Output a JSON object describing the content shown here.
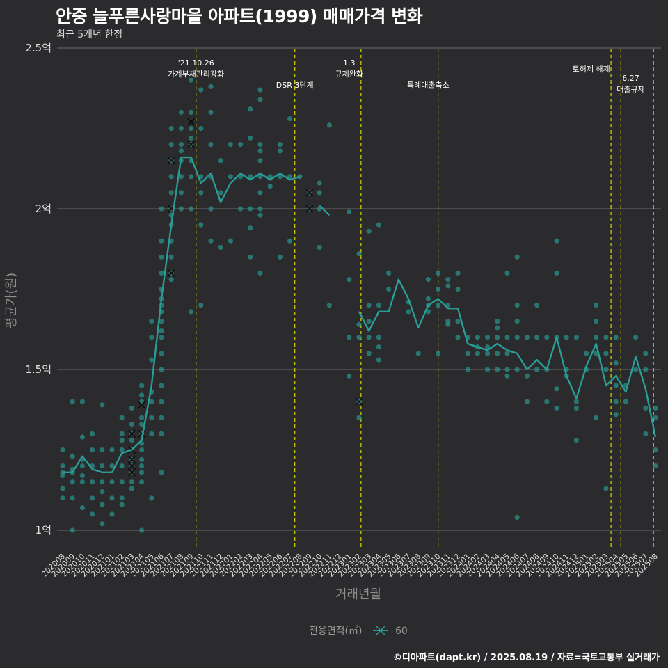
{
  "header": {
    "title": "안중 늘푸른사랑마을 아파트(1999) 매매가격 변화",
    "subtitle": "최근 5개년 한정"
  },
  "footer": {
    "credit": "©디아파트(dapt.kr) / 2025.08.19 / 자료=국토교통부 실거래가"
  },
  "colors": {
    "background": "#2b2b2d",
    "series": "#2a9d96",
    "points": "#2a8f88",
    "grid": "#6e6e6e",
    "event_line": "#d8d800"
  },
  "chart_data": {
    "type": "line",
    "xlabel": "거래년월",
    "ylabel": "평균가(원)",
    "ylim": [
      0.93,
      2.5
    ],
    "yticks": [
      {
        "value": 1,
        "label": "1억"
      },
      {
        "value": 1.5,
        "label": "1.5억"
      },
      {
        "value": 2,
        "label": "2억"
      },
      {
        "value": 2.5,
        "label": "2.5억"
      }
    ],
    "grid": "horizontal",
    "legend": {
      "title": "전용면적(㎡)",
      "placement": "bottom",
      "entries": [
        {
          "label": "60"
        }
      ]
    },
    "x": [
      "202008",
      "202009",
      "202010",
      "202011",
      "202012",
      "202101",
      "202102",
      "202103",
      "202104",
      "202105",
      "202106",
      "202107",
      "202108",
      "202109",
      "202110",
      "202111",
      "202112",
      "202201",
      "202202",
      "202203",
      "202204",
      "202205",
      "202206",
      "202207",
      "202208",
      "202209",
      "202210",
      "202211",
      "202212",
      "202301",
      "202302",
      "202303",
      "202304",
      "202305",
      "202306",
      "202307",
      "202308",
      "202309",
      "202310",
      "202311",
      "202312",
      "202401",
      "202402",
      "202403",
      "202404",
      "202405",
      "202406",
      "202407",
      "202408",
      "202409",
      "202410",
      "202411",
      "202412",
      "202501",
      "202502",
      "202503",
      "202504",
      "202505",
      "202506",
      "202507",
      "202508"
    ],
    "series": [
      {
        "name": "60",
        "values": [
          1.18,
          1.18,
          1.23,
          1.19,
          1.18,
          1.18,
          1.24,
          1.25,
          1.28,
          1.45,
          1.72,
          1.95,
          2.16,
          2.16,
          2.08,
          2.11,
          2.02,
          2.08,
          2.11,
          2.09,
          2.11,
          2.09,
          2.11,
          2.09,
          2.1,
          null,
          2.01,
          1.98,
          null,
          null,
          1.68,
          1.62,
          1.68,
          1.68,
          1.78,
          1.72,
          1.63,
          1.7,
          1.72,
          1.69,
          1.69,
          1.58,
          1.57,
          1.56,
          1.58,
          1.56,
          1.55,
          1.5,
          1.53,
          1.5,
          1.6,
          1.48,
          1.41,
          1.51,
          1.58,
          1.45,
          1.48,
          1.43,
          1.54,
          1.44,
          1.29
        ]
      }
    ],
    "scatter": [
      [
        0,
        1.25
      ],
      [
        0,
        1.2
      ],
      [
        0,
        1.17
      ],
      [
        0,
        1.13
      ],
      [
        0,
        1.1
      ],
      [
        0,
        1.18
      ],
      [
        1,
        1.4
      ],
      [
        1,
        1.23
      ],
      [
        1,
        1.19
      ],
      [
        1,
        1.15
      ],
      [
        1,
        1.1
      ],
      [
        1,
        1.0
      ],
      [
        1,
        1.18
      ],
      [
        2,
        1.4
      ],
      [
        2,
        1.29
      ],
      [
        2,
        1.2
      ],
      [
        2,
        1.17
      ],
      [
        2,
        1.15
      ],
      [
        2,
        1.07
      ],
      [
        2,
        1.22
      ],
      [
        3,
        1.3
      ],
      [
        3,
        1.25
      ],
      [
        3,
        1.2
      ],
      [
        3,
        1.15
      ],
      [
        3,
        1.1
      ],
      [
        3,
        1.05
      ],
      [
        4,
        1.39
      ],
      [
        4,
        1.25
      ],
      [
        4,
        1.2
      ],
      [
        4,
        1.15
      ],
      [
        4,
        1.12
      ],
      [
        4,
        1.08
      ],
      [
        4,
        1.02
      ],
      [
        5,
        1.25
      ],
      [
        5,
        1.2
      ],
      [
        5,
        1.15
      ],
      [
        5,
        1.1
      ],
      [
        5,
        1.05
      ],
      [
        6,
        1.35
      ],
      [
        6,
        1.3
      ],
      [
        6,
        1.25
      ],
      [
        6,
        1.2
      ],
      [
        6,
        1.15
      ],
      [
        6,
        1.1
      ],
      [
        6,
        1.08
      ],
      [
        6,
        1.28
      ],
      [
        7,
        1.38
      ],
      [
        7,
        1.33
      ],
      [
        7,
        1.3
      ],
      [
        7,
        1.25
      ],
      [
        7,
        1.22
      ],
      [
        7,
        1.2
      ],
      [
        7,
        1.18
      ],
      [
        7,
        1.15
      ],
      [
        7,
        1.13
      ],
      [
        7,
        1.28
      ],
      [
        8,
        1.45
      ],
      [
        8,
        1.4
      ],
      [
        8,
        1.35
      ],
      [
        8,
        1.3
      ],
      [
        8,
        1.27
      ],
      [
        8,
        1.25
      ],
      [
        8,
        1.22
      ],
      [
        8,
        1.2
      ],
      [
        8,
        1.18
      ],
      [
        8,
        1.15
      ],
      [
        8,
        1.0
      ],
      [
        8,
        1.33
      ],
      [
        8,
        1.42
      ],
      [
        9,
        1.65
      ],
      [
        9,
        1.6
      ],
      [
        9,
        1.53
      ],
      [
        9,
        1.43
      ],
      [
        9,
        1.4
      ],
      [
        9,
        1.35
      ],
      [
        9,
        1.3
      ],
      [
        9,
        1.1
      ],
      [
        10,
        2.0
      ],
      [
        10,
        1.9
      ],
      [
        10,
        1.85
      ],
      [
        10,
        1.8
      ],
      [
        10,
        1.75
      ],
      [
        10,
        1.7
      ],
      [
        10,
        1.65
      ],
      [
        10,
        1.6
      ],
      [
        10,
        1.55
      ],
      [
        10,
        1.5
      ],
      [
        10,
        1.45
      ],
      [
        10,
        1.4
      ],
      [
        10,
        1.35
      ],
      [
        10,
        1.3
      ],
      [
        10,
        1.18
      ],
      [
        10,
        1.68
      ],
      [
        10,
        1.72
      ],
      [
        10,
        1.62
      ],
      [
        11,
        2.2
      ],
      [
        11,
        2.15
      ],
      [
        11,
        2.1
      ],
      [
        11,
        2.05
      ],
      [
        11,
        2.0
      ],
      [
        11,
        1.95
      ],
      [
        11,
        1.9
      ],
      [
        11,
        1.85
      ],
      [
        11,
        1.8
      ],
      [
        11,
        1.78
      ],
      [
        11,
        2.25
      ],
      [
        11,
        1.98
      ],
      [
        12,
        2.3
      ],
      [
        12,
        2.25
      ],
      [
        12,
        2.2
      ],
      [
        12,
        2.15
      ],
      [
        12,
        2.1
      ],
      [
        12,
        2.05
      ],
      [
        12,
        2.0
      ],
      [
        12,
        2.18
      ],
      [
        13,
        2.4
      ],
      [
        13,
        2.3
      ],
      [
        13,
        2.25
      ],
      [
        13,
        2.2
      ],
      [
        13,
        2.15
      ],
      [
        13,
        2.1
      ],
      [
        13,
        2.0
      ],
      [
        13,
        1.68
      ],
      [
        13,
        2.22
      ],
      [
        14,
        2.37
      ],
      [
        14,
        2.25
      ],
      [
        14,
        2.1
      ],
      [
        14,
        1.95
      ],
      [
        14,
        1.7
      ],
      [
        14,
        2.05
      ],
      [
        15,
        2.38
      ],
      [
        15,
        2.3
      ],
      [
        15,
        2.2
      ],
      [
        15,
        2.1
      ],
      [
        15,
        2.0
      ],
      [
        15,
        1.9
      ],
      [
        16,
        2.15
      ],
      [
        16,
        2.05
      ],
      [
        16,
        1.88
      ],
      [
        17,
        2.2
      ],
      [
        17,
        2.1
      ],
      [
        17,
        1.9
      ],
      [
        18,
        2.2
      ],
      [
        18,
        2.1
      ],
      [
        18,
        2.0
      ],
      [
        19,
        2.31
      ],
      [
        19,
        2.22
      ],
      [
        19,
        2.1
      ],
      [
        19,
        2.0
      ],
      [
        19,
        1.94
      ],
      [
        19,
        1.85
      ],
      [
        20,
        2.37
      ],
      [
        20,
        2.34
      ],
      [
        20,
        2.2
      ],
      [
        20,
        2.15
      ],
      [
        20,
        2.1
      ],
      [
        20,
        2.05
      ],
      [
        20,
        2.0
      ],
      [
        20,
        1.98
      ],
      [
        20,
        1.8
      ],
      [
        20,
        2.18
      ],
      [
        21,
        2.1
      ],
      [
        21,
        2.07
      ],
      [
        22,
        2.2
      ],
      [
        22,
        2.18
      ],
      [
        22,
        2.1
      ],
      [
        22,
        1.85
      ],
      [
        23,
        2.28
      ],
      [
        23,
        2.1
      ],
      [
        23,
        1.9
      ],
      [
        24,
        2.1
      ],
      [
        25,
        2.05
      ],
      [
        25,
        2.0
      ],
      [
        26,
        2.08
      ],
      [
        26,
        2.05
      ],
      [
        26,
        2.0
      ],
      [
        26,
        1.88
      ],
      [
        27,
        2.26
      ],
      [
        27,
        1.7
      ],
      [
        29,
        1.99
      ],
      [
        29,
        1.78
      ],
      [
        29,
        1.6
      ],
      [
        29,
        1.48
      ],
      [
        30,
        1.86
      ],
      [
        30,
        1.64
      ],
      [
        30,
        1.6
      ],
      [
        30,
        1.4
      ],
      [
        30,
        1.35
      ],
      [
        31,
        1.93
      ],
      [
        31,
        1.7
      ],
      [
        31,
        1.65
      ],
      [
        31,
        1.6
      ],
      [
        31,
        1.55
      ],
      [
        32,
        1.95
      ],
      [
        32,
        1.7
      ],
      [
        32,
        1.6
      ],
      [
        32,
        1.57
      ],
      [
        32,
        1.53
      ],
      [
        33,
        1.8
      ],
      [
        33,
        1.75
      ],
      [
        35,
        1.71
      ],
      [
        35,
        1.68
      ],
      [
        36,
        1.55
      ],
      [
        37,
        1.78
      ],
      [
        37,
        1.72
      ],
      [
        37,
        1.7
      ],
      [
        37,
        1.68
      ],
      [
        38,
        1.8
      ],
      [
        38,
        1.75
      ],
      [
        38,
        1.7
      ],
      [
        38,
        1.55
      ],
      [
        39,
        1.78
      ],
      [
        39,
        1.76
      ],
      [
        39,
        1.7
      ],
      [
        39,
        1.65
      ],
      [
        39,
        1.64
      ],
      [
        40,
        1.8
      ],
      [
        40,
        1.75
      ],
      [
        40,
        1.65
      ],
      [
        40,
        1.6
      ],
      [
        41,
        1.6
      ],
      [
        41,
        1.55
      ],
      [
        41,
        1.5
      ],
      [
        42,
        1.6
      ],
      [
        42,
        1.57
      ],
      [
        42,
        1.55
      ],
      [
        43,
        1.6
      ],
      [
        43,
        1.57
      ],
      [
        43,
        1.55
      ],
      [
        43,
        1.5
      ],
      [
        44,
        1.65
      ],
      [
        44,
        1.63
      ],
      [
        44,
        1.6
      ],
      [
        44,
        1.55
      ],
      [
        44,
        1.5
      ],
      [
        45,
        1.8
      ],
      [
        45,
        1.6
      ],
      [
        45,
        1.55
      ],
      [
        45,
        1.5
      ],
      [
        45,
        1.48
      ],
      [
        46,
        1.85
      ],
      [
        46,
        1.7
      ],
      [
        46,
        1.65
      ],
      [
        46,
        1.6
      ],
      [
        46,
        1.5
      ],
      [
        46,
        1.04
      ],
      [
        47,
        1.6
      ],
      [
        47,
        1.48
      ],
      [
        47,
        1.4
      ],
      [
        48,
        1.7
      ],
      [
        48,
        1.6
      ],
      [
        48,
        1.5
      ],
      [
        49,
        1.6
      ],
      [
        49,
        1.5
      ],
      [
        49,
        1.4
      ],
      [
        50,
        1.9
      ],
      [
        50,
        1.8
      ],
      [
        50,
        1.6
      ],
      [
        50,
        1.44
      ],
      [
        50,
        1.38
      ],
      [
        51,
        1.6
      ],
      [
        51,
        1.5
      ],
      [
        51,
        1.48
      ],
      [
        52,
        1.6
      ],
      [
        52,
        1.4
      ],
      [
        52,
        1.38
      ],
      [
        52,
        1.28
      ],
      [
        53,
        1.55
      ],
      [
        53,
        1.5
      ],
      [
        54,
        1.7
      ],
      [
        54,
        1.65
      ],
      [
        54,
        1.6
      ],
      [
        54,
        1.55
      ],
      [
        54,
        1.35
      ],
      [
        55,
        1.6
      ],
      [
        55,
        1.55
      ],
      [
        55,
        1.5
      ],
      [
        55,
        1.13
      ],
      [
        56,
        1.6
      ],
      [
        56,
        1.52
      ],
      [
        56,
        1.45
      ],
      [
        56,
        1.4
      ],
      [
        56,
        1.36
      ],
      [
        57,
        1.45
      ],
      [
        57,
        1.4
      ],
      [
        58,
        1.6
      ],
      [
        58,
        1.5
      ],
      [
        59,
        1.55
      ],
      [
        59,
        1.5
      ],
      [
        59,
        1.38
      ],
      [
        59,
        1.3
      ],
      [
        60,
        1.38
      ],
      [
        60,
        1.35
      ],
      [
        60,
        1.25
      ],
      [
        60,
        1.2
      ]
    ],
    "cancelled": [
      [
        7,
        1.3
      ],
      [
        7,
        1.25
      ],
      [
        7,
        1.22
      ],
      [
        7,
        1.2
      ],
      [
        7,
        1.18
      ],
      [
        8,
        1.39
      ],
      [
        8,
        1.3
      ],
      [
        11,
        2.15
      ],
      [
        11,
        2.0
      ],
      [
        11,
        1.8
      ],
      [
        13,
        2.27
      ],
      [
        13,
        2.2
      ],
      [
        25,
        2.05
      ],
      [
        25,
        2.0
      ],
      [
        30,
        1.4
      ]
    ],
    "annotations": [
      {
        "x": 13.5,
        "lines": [
          "'21.10.26",
          "가계부채관리강화"
        ],
        "position": "top"
      },
      {
        "x": 23.5,
        "lines": [
          "DSR 3단계"
        ],
        "position": "second"
      },
      {
        "x": 29.0,
        "lines": [
          "1.3",
          "규제완화"
        ],
        "position": "top"
      },
      {
        "x": 37.0,
        "lines": [
          "특례대출축소"
        ],
        "position": "second"
      },
      {
        "x": 53.5,
        "lines": [
          "토허제 해제"
        ],
        "position": "top-single"
      },
      {
        "x": 57.5,
        "lines": [
          "6.27",
          "대출규제"
        ],
        "position": "lower"
      }
    ],
    "event_lines": [
      13.5,
      23.5,
      30.2,
      38.0,
      55.5,
      56.5,
      59.8
    ]
  }
}
